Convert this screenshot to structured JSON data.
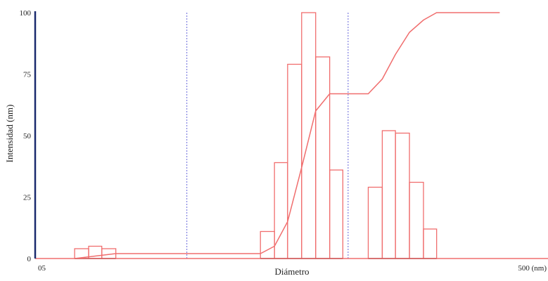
{
  "chart_data": {
    "type": "bar",
    "title": "",
    "xlabel": "Diámetro",
    "ylabel": "Intensidad (nm)",
    "x_ticks": [
      {
        "label": "05",
        "x": 0
      },
      {
        "label": "500 (nm)",
        "x": 500
      }
    ],
    "y_ticks": [
      0,
      25,
      50,
      75,
      100
    ],
    "xlim": [
      0,
      500
    ],
    "ylim": [
      0,
      100
    ],
    "grid": false,
    "reference_lines_x": [
      173,
      357
    ],
    "bars": [
      {
        "x0": 45,
        "x1": 61,
        "y": 4
      },
      {
        "x0": 61,
        "x1": 76,
        "y": 5
      },
      {
        "x0": 76,
        "x1": 92,
        "y": 4
      },
      {
        "x0": 257,
        "x1": 273,
        "y": 11
      },
      {
        "x0": 273,
        "x1": 288,
        "y": 39
      },
      {
        "x0": 288,
        "x1": 304,
        "y": 79
      },
      {
        "x0": 304,
        "x1": 320,
        "y": 100
      },
      {
        "x0": 320,
        "x1": 336,
        "y": 82
      },
      {
        "x0": 336,
        "x1": 351,
        "y": 36
      },
      {
        "x0": 380,
        "x1": 396,
        "y": 29
      },
      {
        "x0": 396,
        "x1": 411,
        "y": 52
      },
      {
        "x0": 411,
        "x1": 427,
        "y": 51
      },
      {
        "x0": 427,
        "x1": 443,
        "y": 31
      },
      {
        "x0": 443,
        "x1": 458,
        "y": 12
      }
    ],
    "cumulative_line": [
      {
        "x": 45,
        "y": 0
      },
      {
        "x": 92,
        "y": 2
      },
      {
        "x": 257,
        "y": 2
      },
      {
        "x": 273,
        "y": 5
      },
      {
        "x": 288,
        "y": 15
      },
      {
        "x": 304,
        "y": 37
      },
      {
        "x": 320,
        "y": 60
      },
      {
        "x": 336,
        "y": 67
      },
      {
        "x": 380,
        "y": 67
      },
      {
        "x": 396,
        "y": 73
      },
      {
        "x": 411,
        "y": 83
      },
      {
        "x": 427,
        "y": 92
      },
      {
        "x": 443,
        "y": 97
      },
      {
        "x": 458,
        "y": 100
      },
      {
        "x": 530,
        "y": 100
      }
    ],
    "colors": {
      "bars": "#f06e6e",
      "line": "#f06e6e",
      "reference_lines": "#8080e0",
      "y_axis": "#1a2a6e",
      "baseline": "#f06e6e"
    }
  }
}
